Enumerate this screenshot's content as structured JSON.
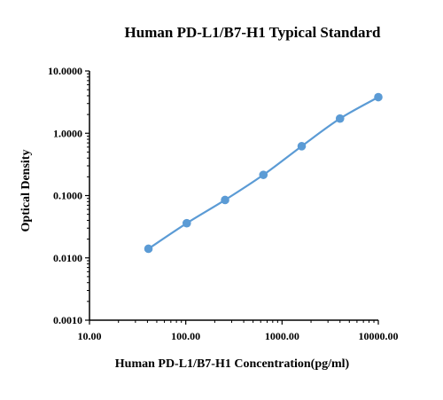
{
  "chart_data": {
    "type": "line",
    "title": "Human PD-L1/B7-H1 Typical Standard",
    "xlabel": "Human PD-L1/B7-H1  Concentration(pg/ml)",
    "ylabel": "Optical Density",
    "x_scale": "log",
    "y_scale": "log",
    "xlim": [
      10,
      10000
    ],
    "ylim": [
      0.001,
      10
    ],
    "x_ticks": [
      {
        "value": 10,
        "label": "10.00"
      },
      {
        "value": 100,
        "label": "100.00"
      },
      {
        "value": 1000,
        "label": "1000.00"
      },
      {
        "value": 10000,
        "label": "10000.00"
      }
    ],
    "y_ticks": [
      {
        "value": 0.001,
        "label": "0.0010"
      },
      {
        "value": 0.01,
        "label": "0.0100"
      },
      {
        "value": 0.1,
        "label": "0.1000"
      },
      {
        "value": 1,
        "label": "1.0000"
      },
      {
        "value": 10,
        "label": "10.0000"
      }
    ],
    "grid": false,
    "legend": "none",
    "series": [
      {
        "color": "#5b9bd5",
        "x": [
          40.96,
          102.4,
          256,
          640,
          1600,
          4000,
          10000
        ],
        "y": [
          0.014,
          0.036,
          0.085,
          0.215,
          0.62,
          1.72,
          3.8
        ]
      }
    ]
  }
}
